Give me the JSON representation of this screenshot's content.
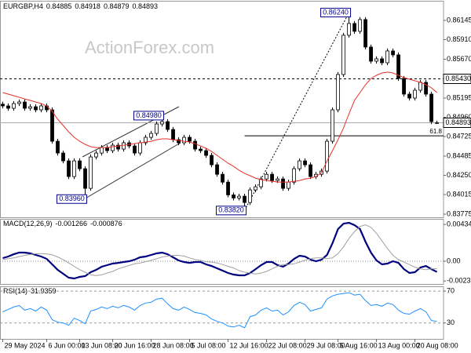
{
  "watermark": "ActionForex.com",
  "chart_data": [
    {
      "type": "candlestick",
      "symbol": "EURGBP,H4",
      "color": "#000000",
      "up_color": "#ffffff",
      "down_color": "#000000",
      "open": [
        0.8512,
        0.85099,
        0.8507,
        0.85128,
        0.85147,
        0.8507,
        0.85089,
        0.85051,
        0.85099,
        0.85051,
        0.84667,
        0.84523,
        0.84427,
        0.84235,
        0.84427,
        0.84331,
        0.84091,
        0.84475,
        0.84523,
        0.8459,
        0.84552,
        0.84619,
        0.84571,
        0.84648,
        0.84609,
        0.84523,
        0.84648,
        0.84715,
        0.84763,
        0.84878,
        0.84907,
        0.84811,
        0.84686,
        0.84648,
        0.84715,
        0.84667,
        0.84571,
        0.84552,
        0.84494,
        0.84379,
        0.84263,
        0.84167,
        0.84011,
        0.83973,
        0.83995,
        0.83918,
        0.84072,
        0.8411,
        0.84206,
        0.84263,
        0.84187,
        0.84206,
        0.84091,
        0.84167,
        0.84331,
        0.84427,
        0.84379,
        0.84235,
        0.84263,
        0.84302,
        0.84667,
        0.85051,
        0.85483,
        0.85963,
        0.86107,
        0.86011,
        0.86155,
        0.85819,
        0.85646,
        0.85675,
        0.85627,
        0.85771,
        0.85723,
        0.85435,
        0.85243,
        0.85195,
        0.85291,
        0.85387,
        0.85243,
        0.84885
      ],
      "high": [
        0.8515,
        0.85129,
        0.85158,
        0.85177,
        0.85177,
        0.85119,
        0.85119,
        0.85129,
        0.85129,
        0.85081,
        0.84697,
        0.84553,
        0.84457,
        0.84457,
        0.84457,
        0.84361,
        0.84505,
        0.84553,
        0.8462,
        0.8462,
        0.84649,
        0.84649,
        0.84678,
        0.84678,
        0.84639,
        0.84678,
        0.84745,
        0.84793,
        0.84908,
        0.8498,
        0.84937,
        0.84841,
        0.84716,
        0.84745,
        0.84745,
        0.84697,
        0.84601,
        0.84582,
        0.84524,
        0.84409,
        0.84293,
        0.84197,
        0.84041,
        0.84025,
        0.84025,
        0.84102,
        0.8414,
        0.84236,
        0.84293,
        0.84293,
        0.84236,
        0.84236,
        0.84197,
        0.84361,
        0.84457,
        0.84457,
        0.84409,
        0.84293,
        0.84332,
        0.84697,
        0.85081,
        0.85513,
        0.85993,
        0.8624,
        0.86137,
        0.86185,
        0.86185,
        0.85849,
        0.85705,
        0.85705,
        0.85801,
        0.85801,
        0.85753,
        0.85465,
        0.85273,
        0.85321,
        0.85417,
        0.85417,
        0.85273,
        0.84918
      ],
      "low": [
        0.85069,
        0.8504,
        0.8504,
        0.85098,
        0.8504,
        0.8504,
        0.85021,
        0.85021,
        0.85021,
        0.84637,
        0.84493,
        0.84397,
        0.84205,
        0.84205,
        0.84301,
        0.8396,
        0.84061,
        0.84445,
        0.84493,
        0.84522,
        0.84522,
        0.84541,
        0.84541,
        0.84579,
        0.84493,
        0.84493,
        0.84618,
        0.84685,
        0.84733,
        0.84848,
        0.84781,
        0.84656,
        0.84618,
        0.84618,
        0.84637,
        0.84541,
        0.84522,
        0.84464,
        0.84349,
        0.84233,
        0.84137,
        0.83981,
        0.83943,
        0.83943,
        0.8382,
        0.83888,
        0.84042,
        0.8408,
        0.84176,
        0.84157,
        0.84157,
        0.84061,
        0.84061,
        0.84137,
        0.84301,
        0.84349,
        0.84205,
        0.84205,
        0.84233,
        0.84272,
        0.84637,
        0.85021,
        0.85453,
        0.85933,
        0.85981,
        0.85981,
        0.85789,
        0.85616,
        0.85616,
        0.85597,
        0.85597,
        0.85693,
        0.85405,
        0.85213,
        0.85165,
        0.85165,
        0.85261,
        0.85213,
        0.84877,
        0.84879
      ],
      "close": [
        0.85099,
        0.8507,
        0.85128,
        0.85147,
        0.8507,
        0.85089,
        0.85051,
        0.85099,
        0.85051,
        0.84667,
        0.84523,
        0.84427,
        0.84235,
        0.84427,
        0.84331,
        0.84091,
        0.84475,
        0.84523,
        0.8459,
        0.84552,
        0.84619,
        0.84571,
        0.84648,
        0.84609,
        0.84523,
        0.84648,
        0.84715,
        0.84763,
        0.84878,
        0.84907,
        0.84811,
        0.84686,
        0.84648,
        0.84715,
        0.84667,
        0.84571,
        0.84552,
        0.84494,
        0.84379,
        0.84263,
        0.84167,
        0.84011,
        0.83973,
        0.83995,
        0.83918,
        0.84072,
        0.8411,
        0.84206,
        0.84263,
        0.84187,
        0.84206,
        0.84091,
        0.84167,
        0.84331,
        0.84427,
        0.84379,
        0.84235,
        0.84263,
        0.84302,
        0.84667,
        0.85051,
        0.85483,
        0.85963,
        0.86107,
        0.86011,
        0.86155,
        0.85819,
        0.85646,
        0.85675,
        0.85627,
        0.85771,
        0.85723,
        0.85435,
        0.85243,
        0.85195,
        0.85291,
        0.85387,
        0.85243,
        0.84907,
        0.84893
      ],
      "moving_average": {
        "color": "#e8302a",
        "values": [
          0.85262,
          0.85243,
          0.85224,
          0.85205,
          0.85185,
          0.85166,
          0.85147,
          0.85128,
          0.85099,
          0.85032,
          0.84936,
          0.84859,
          0.84782,
          0.84715,
          0.84667,
          0.84629,
          0.846,
          0.8459,
          0.8459,
          0.8459,
          0.846,
          0.84609,
          0.84619,
          0.84629,
          0.84638,
          0.84648,
          0.84657,
          0.84667,
          0.84686,
          0.84696,
          0.84696,
          0.84686,
          0.84677,
          0.84667,
          0.84657,
          0.84638,
          0.84609,
          0.84581,
          0.84542,
          0.84494,
          0.84446,
          0.84398,
          0.8436,
          0.84312,
          0.84273,
          0.84245,
          0.84216,
          0.84197,
          0.84187,
          0.84177,
          0.84168,
          0.84168,
          0.84168,
          0.84177,
          0.84187,
          0.84206,
          0.84216,
          0.84235,
          0.84283,
          0.84427,
          0.84552,
          0.84686,
          0.8483,
          0.85003,
          0.85166,
          0.85262,
          0.85358,
          0.85435,
          0.85473,
          0.85502,
          0.85512,
          0.85502,
          0.85473,
          0.85445,
          0.85425,
          0.85406,
          0.85387,
          0.85358,
          0.8532,
          0.85262
        ]
      },
      "xlim": [
        -0.5,
        80.2
      ],
      "ylim": [
        0.83737,
        0.86375
      ],
      "yticks": [
        0.86145,
        {
          "value": 0.8591,
          "label": "0.85910"
        },
        {
          "value": 0.8567,
          "label": "0.85670"
        },
        0.85195,
        {
          "value": 0.8496,
          "label": "0.84960"
        },
        0.84725,
        0.84485,
        {
          "value": 0.8425,
          "label": "0.84250"
        },
        0.84015,
        0.83775
      ],
      "levels": [
        {
          "value": 0.8543,
          "label": "0.85430"
        }
      ],
      "fibonacci": {
        "value": 0.84734,
        "label": "61.8"
      },
      "annotations": [
        {
          "value": 0.8498,
          "label": "0.84980"
        },
        {
          "value": 0.8396,
          "label": "0.83960"
        },
        {
          "value": 0.8382,
          "label": "0.83820"
        },
        {
          "value": 0.8624,
          "label": "0.86240"
        }
      ]
    },
    {
      "type": "line",
      "title": "MACD(12,26,9)",
      "grid": false,
      "zero_line": true,
      "series": [
        {
          "color": "#000080",
          "values": [
            0.00037,
            0.00056,
            0.00083,
            0.00102,
            0.00102,
            0.00093,
            0.00074,
            0.00056,
            0.00028,
            -0.00037,
            -0.00102,
            -0.00148,
            -0.00194,
            -0.00204,
            -0.00185,
            -0.00176,
            -0.0013,
            -0.00102,
            -0.00065,
            -0.00046,
            -0.00028,
            -0.00019,
            -9e-05,
            0,
            0.00019,
            0.00046,
            0.00056,
            0.00074,
            0.00093,
            0.00102,
            0.00083,
            0.00046,
            9e-05,
            -9e-05,
            -0.00019,
            -9e-05,
            -9e-05,
            -0.00037,
            -0.00056,
            -0.00083,
            -0.00111,
            -0.00139,
            -0.00157,
            -0.00167,
            -0.00167,
            -0.00139,
            -0.00093,
            -0.00046,
            -9e-05,
            -9e-05,
            -0.00046,
            -0.00065,
            -0.00028,
            0.00028,
            0.00065,
            0.00056,
            0.00019,
            0,
            0.00019,
            0.00074,
            0.00213,
            0.0038,
            0.00444,
            0.00454,
            0.00426,
            0.0038,
            0.00231,
            0.00102,
            9e-05,
            -0.00037,
            -0.00028,
            0,
            -0.00019,
            -0.00093,
            -0.00139,
            -0.0013,
            -0.00074,
            -0.00056,
            -0.00093,
            -0.001266
          ]
        },
        {
          "color": "#a0a0a0",
          "values": [
            0.0002,
            0.0003,
            0.0004,
            0.00055,
            0.0007,
            0.0008,
            0.00088,
            0.0009,
            0.00085,
            0.00075,
            0.0005,
            0.0002,
            -0.0002,
            -0.0006,
            -0.001,
            -0.0013,
            -0.0016,
            -0.0017,
            -0.0016,
            -0.0014,
            -0.0012,
            -0.0009,
            -0.0007,
            -0.0005,
            -0.0003,
            -0.0002,
            -5e-05,
            0.0001,
            0.0003,
            0.0005,
            0.0006,
            0.0007,
            0.0007,
            0.0006,
            0.0004,
            0.0002,
            0.0001,
            -5e-05,
            -0.0001,
            -0.0002,
            -0.0004,
            -0.0006,
            -0.0008,
            -0.0011,
            -0.0013,
            -0.0014,
            -0.0015,
            -0.0014,
            -0.0012,
            -0.0009,
            -0.0006,
            -0.0004,
            -0.0004,
            -0.0003,
            -0.0001,
            0.0001,
            0.0003,
            0.0004,
            0.0004,
            0.0003,
            0.0004,
            0.0009,
            0.0017,
            0.0027,
            0.0035,
            0.0041,
            0.0043,
            0.004,
            0.0033,
            0.0024,
            0.0015,
            0.0007,
            0.0002,
            -0.0001,
            -0.0004,
            -0.0007,
            -0.0009,
            -0.001,
            -0.0009,
            -0.000876
          ]
        }
      ],
      "xlim": [
        -0.5,
        80.2
      ],
      "ylim": [
        -0.002685,
        0.00491
      ],
      "yticks": [
        0.004342,
        {
          "value": 0,
          "label": "0.00"
        },
        -0.002336
      ]
    },
    {
      "type": "line",
      "title": "RSI(14)",
      "grid": true,
      "series": [
        {
          "color": "#1e90ff",
          "values": [
            44,
            47,
            50,
            52,
            46,
            48,
            45,
            50,
            46,
            34,
            31,
            30,
            27,
            36,
            33,
            29,
            45,
            47,
            50,
            48,
            51,
            49,
            52,
            50,
            46,
            52,
            55,
            56,
            60,
            61,
            54,
            48,
            46,
            50,
            47,
            43,
            42,
            40,
            35,
            32,
            30,
            26,
            25,
            27,
            24,
            38,
            40,
            46,
            49,
            45,
            46,
            40,
            44,
            52,
            56,
            53,
            45,
            47,
            49,
            60,
            64,
            66,
            67,
            68,
            65,
            66,
            58,
            52,
            53,
            51,
            55,
            53,
            46,
            42,
            41,
            45,
            48,
            44,
            33,
            31.9359
          ]
        }
      ],
      "xlim": [
        -0.5,
        80.2
      ],
      "ylim": [
        10,
        75
      ],
      "yticks": [
        70,
        30
      ],
      "xticks": [
        {
          "value": 0,
          "label": "29 May 2024"
        },
        {
          "value": 8,
          "label": "6 Jun 00:00"
        },
        {
          "value": 14,
          "label": "13 Jun 08:00"
        },
        {
          "value": 20,
          "label": "20 Jun 16:00"
        },
        {
          "value": 27,
          "label": "28 Jun 08:00"
        },
        {
          "value": 34,
          "label": "5 Jul 08:00"
        },
        {
          "value": 41,
          "label": "12 Jul 16:00"
        },
        {
          "value": 48,
          "label": "22 Jul 08:00"
        },
        {
          "value": 55,
          "label": "29 Jul 08:00"
        },
        {
          "value": 61,
          "label": "5 Aug 16:00"
        },
        {
          "value": 68,
          "label": "13 Aug 00:00"
        },
        {
          "value": 75,
          "label": "20 Aug 08:00"
        }
      ]
    }
  ]
}
